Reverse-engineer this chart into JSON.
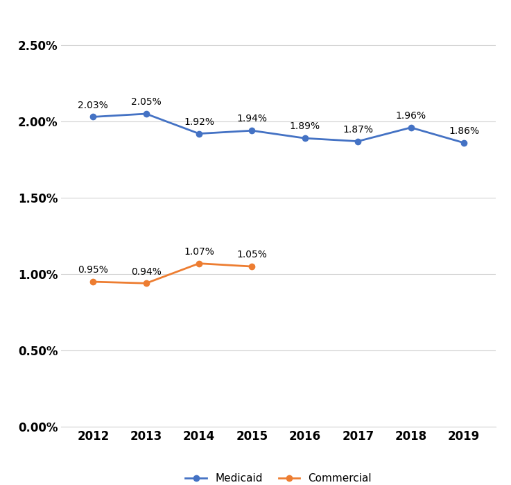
{
  "years": [
    2012,
    2013,
    2014,
    2015,
    2016,
    2017,
    2018,
    2019
  ],
  "medicaid": [
    0.0203,
    0.0205,
    0.0192,
    0.0194,
    0.0189,
    0.0187,
    0.0196,
    0.0186
  ],
  "commercial": [
    0.0095,
    0.0094,
    0.0107,
    0.0105
  ],
  "commercial_years": [
    2012,
    2013,
    2014,
    2015
  ],
  "medicaid_labels": [
    "2.03%",
    "2.05%",
    "1.92%",
    "1.94%",
    "1.89%",
    "1.87%",
    "1.96%",
    "1.86%"
  ],
  "commercial_labels": [
    "0.95%",
    "0.94%",
    "1.07%",
    "1.05%"
  ],
  "medicaid_color": "#4472C4",
  "commercial_color": "#ED7D31",
  "background_color": "#ffffff",
  "ytick_vals": [
    0.0,
    0.005,
    0.01,
    0.015,
    0.02,
    0.025
  ],
  "ytick_labels": [
    "0.00%",
    "0.50%",
    "1.00%",
    "1.50%",
    "2.00%",
    "2.50%"
  ],
  "ylim": [
    0.0,
    0.027
  ],
  "legend_labels": [
    "Medicaid",
    "Commercial"
  ],
  "label_fontsize": 10,
  "tick_fontsize": 12,
  "legend_fontsize": 11,
  "marker_size": 6,
  "line_width": 2.0,
  "grid_color": "#D3D3D3",
  "spine_color": "#D3D3D3"
}
